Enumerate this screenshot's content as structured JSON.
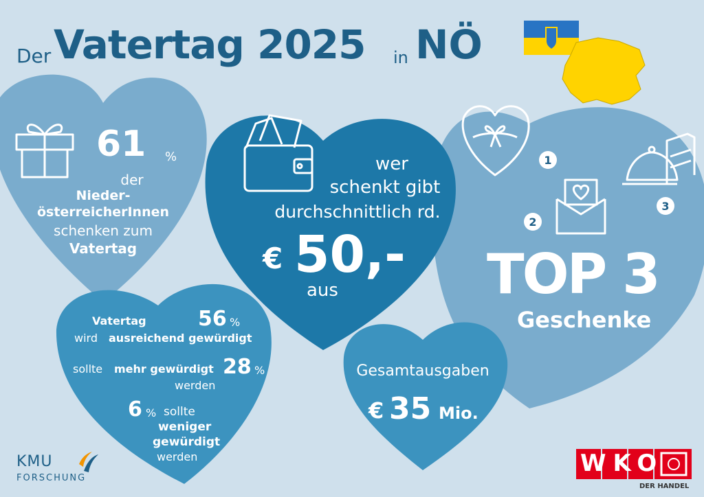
{
  "title": {
    "prefix": "Der",
    "main": "Vatertag 2025",
    "connector": "in",
    "region": "NÖ"
  },
  "heart1": {
    "percent": "61",
    "percent_sign": "%",
    "line1": "der",
    "line2": "Nieder-",
    "line3": "österreicherInnen",
    "line4": "schenken zum",
    "line5": "Vatertag"
  },
  "heart2": {
    "line1": "wer",
    "line2": "schenkt gibt",
    "line3": "durchschnittlich rd.",
    "currency": "€",
    "amount": "50,-",
    "line4": "aus"
  },
  "heart3": {
    "rank1": "1",
    "rank2": "2",
    "rank3": "3",
    "top": "TOP 3",
    "subtitle": "Geschenke"
  },
  "heart4": {
    "a_pct": "56",
    "a_sign": "%",
    "a_line1": "Vatertag",
    "a_pre": "wird",
    "a_bold": "ausreichend gewürdigt",
    "b_pre": "sollte",
    "b_bold": "mehr gewürdigt",
    "b_pct": "28",
    "b_sign": "%",
    "b_line2": "werden",
    "c_pct": "6",
    "c_sign": "%",
    "c_line1": "sollte",
    "c_bold": "weniger",
    "c_bold2": "gewürdigt",
    "c_line2": "werden"
  },
  "heart5": {
    "line1": "Gesamtausgaben",
    "currency": "€",
    "amount": "35",
    "unit": "Mio."
  },
  "logos": {
    "kmu_top": "KMU",
    "kmu_bottom": "FORSCHUNG",
    "wko": "WKO",
    "wko_sub": "DER HANDEL"
  },
  "colors": {
    "navy": "#1e5f87",
    "light": "#7aaccd",
    "mid": "#3c93bf",
    "dark": "#1d78a8",
    "bg": "#cfe0ec",
    "yellow": "#ffd300",
    "blue": "#2874c4",
    "red": "#e2001a"
  },
  "icons": [
    "gift-icon",
    "wallet-icon",
    "heart-box-icon",
    "envelope-icon",
    "cloche-icon",
    "book-icon"
  ]
}
